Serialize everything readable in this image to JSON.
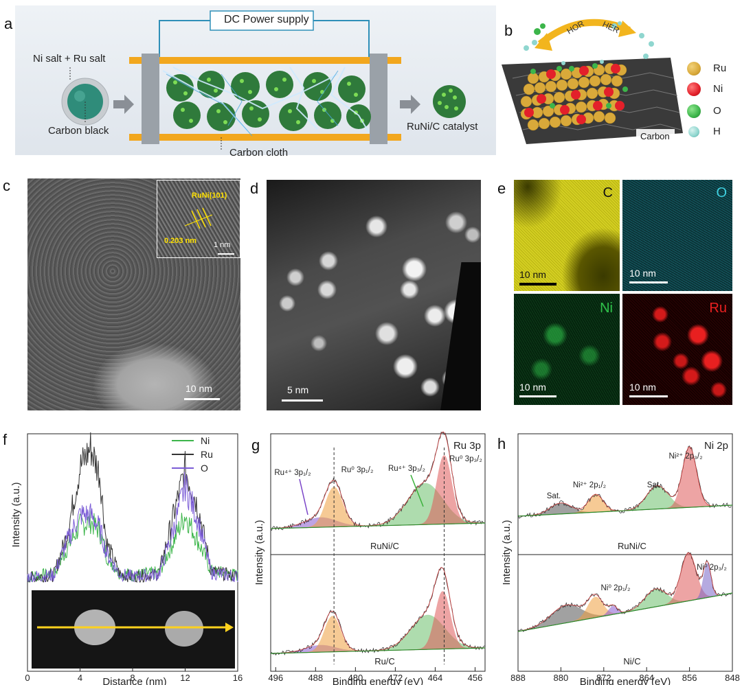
{
  "panel_labels": {
    "a": "a",
    "b": "b",
    "c": "c",
    "d": "d",
    "e": "e",
    "f": "f",
    "g": "g",
    "h": "h"
  },
  "panel_a": {
    "power_supply": "DC Power supply",
    "precursor": "Ni salt + Ru salt",
    "support": "Carbon black",
    "cloth": "Carbon cloth",
    "product": "RuNi/C catalyst"
  },
  "panel_b": {
    "hor": "HOR",
    "her": "HER",
    "substrate": "Carbon",
    "legend": [
      {
        "label": "Ru",
        "color": "#d9a93a"
      },
      {
        "label": "Ni",
        "color": "#e3202a"
      },
      {
        "label": "O",
        "color": "#3cb54a"
      },
      {
        "label": "H",
        "color": "#8fd6cf"
      }
    ]
  },
  "panel_c": {
    "inset_label": "RuNi(101)",
    "spacing": "0.203 nm",
    "inset_scale": "1 nm",
    "scale": "10 nm"
  },
  "panel_d": {
    "scale": "5 nm"
  },
  "panel_e": {
    "maps": [
      {
        "element": "C",
        "scale": "10 nm",
        "color": "#e6e02a"
      },
      {
        "element": "O",
        "scale": "10 nm",
        "color": "#3fd0e0"
      },
      {
        "element": "Ni",
        "scale": "10 nm",
        "color": "#2fc24a"
      },
      {
        "element": "Ru",
        "scale": "10 nm",
        "color": "#e82020"
      }
    ]
  },
  "panel_f": {
    "xlabel": "Distance (nm)",
    "ylabel": "Intensity (a.u.)",
    "xticks": [
      "0",
      "4",
      "8",
      "12",
      "16"
    ],
    "legend": [
      {
        "name": "Ni",
        "color": "#3cb54a"
      },
      {
        "name": "Ru",
        "color": "#333333"
      },
      {
        "name": "O",
        "color": "#7a5bd6"
      }
    ]
  },
  "panel_g": {
    "title": "Ru 3p",
    "xlabel": "Binding energy (eV)",
    "ylabel": "Intensity (a.u.)",
    "xticks": [
      "496",
      "488",
      "480",
      "472",
      "464",
      "456"
    ],
    "sample_top": "RuNi/C",
    "sample_bottom": "Ru/C",
    "peak_ru4_p12": "Ru⁴⁺ 3p₁/₂",
    "peak_ru0_p12": "Ru⁰ 3p₁/₂",
    "peak_ru4_p32": "Ru⁴⁺ 3p₃/₂",
    "peak_ru0_p32": "Ru⁰ 3p₃/₂"
  },
  "panel_h": {
    "title": "Ni 2p",
    "xlabel": "Binding energy (eV)",
    "ylabel": "Intensity (a.u.)",
    "xticks": [
      "888",
      "880",
      "872",
      "864",
      "856",
      "848"
    ],
    "sample_top": "RuNi/C",
    "sample_bottom": "Ni/C",
    "sat1": "Sat.",
    "sat2": "Sat.",
    "ni2_p12": "Ni²⁺ 2p₁/₂",
    "ni2_p32": "Ni²⁺ 2p₃/₂",
    "ni0_p12": "Ni⁰ 2p₁/₂",
    "ni0_p32": "Ni⁰ 2p₃/₂"
  },
  "chart_data": [
    {
      "type": "line",
      "title": "",
      "xlabel": "Distance (nm)",
      "ylabel": "Intensity (a.u.)",
      "xlim": [
        0,
        16
      ],
      "series": [
        {
          "name": "Ni",
          "x": [
            0,
            2,
            3,
            4,
            4.8,
            5.5,
            6,
            7,
            8,
            10,
            11,
            12,
            13,
            14,
            16
          ],
          "y": [
            0.04,
            0.06,
            0.25,
            0.42,
            0.45,
            0.38,
            0.2,
            0.07,
            0.05,
            0.07,
            0.28,
            0.5,
            0.3,
            0.08,
            0.05
          ]
        },
        {
          "name": "Ru",
          "x": [
            0,
            2,
            3,
            4,
            4.8,
            5.5,
            6,
            7,
            8,
            10,
            11,
            12,
            13,
            14,
            16
          ],
          "y": [
            0.03,
            0.05,
            0.35,
            0.85,
            1.0,
            0.8,
            0.3,
            0.06,
            0.04,
            0.06,
            0.45,
            0.84,
            0.55,
            0.08,
            0.04
          ]
        },
        {
          "name": "O",
          "x": [
            0,
            2,
            3,
            4,
            4.8,
            5.5,
            6,
            7,
            8,
            10,
            11,
            12,
            13,
            14,
            16
          ],
          "y": [
            0.04,
            0.05,
            0.3,
            0.5,
            0.5,
            0.4,
            0.22,
            0.06,
            0.04,
            0.06,
            0.35,
            0.72,
            0.45,
            0.07,
            0.04
          ]
        }
      ]
    },
    {
      "type": "line",
      "title": "Ru 3p",
      "xlabel": "Binding energy (eV)",
      "ylabel": "Intensity (a.u.)",
      "xlim": [
        497,
        454
      ],
      "peaks_eV": {
        "Ru4+ 3p1/2": 486.5,
        "Ru0 3p1/2": 484.3,
        "Ru4+ 3p3/2": 465.0,
        "Ru0 3p3/2": 462.0
      }
    },
    {
      "type": "line",
      "title": "Ni 2p",
      "xlabel": "Binding energy (eV)",
      "ylabel": "Intensity (a.u.)",
      "xlim": [
        888,
        848
      ],
      "peaks_eV": {
        "Sat.": 879.5,
        "Ni2+ 2p1/2": 873.5,
        "Sat. ": 861.5,
        "Ni2+ 2p3/2": 856.0,
        "Ni0 2p1/2": 870.5,
        "Ni0 2p3/2": 853.0
      }
    }
  ]
}
